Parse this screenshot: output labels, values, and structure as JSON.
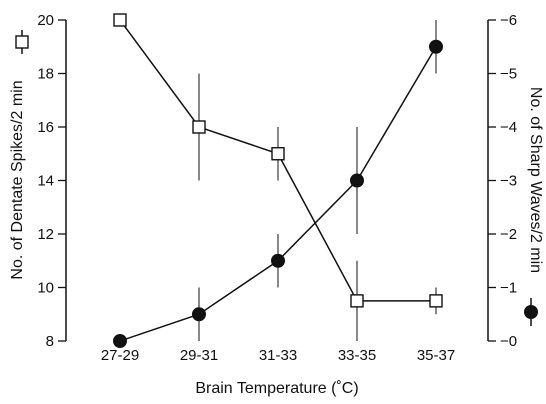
{
  "chart_data": {
    "type": "line",
    "categories": [
      "27-29",
      "29-31",
      "31-33",
      "33-35",
      "35-37"
    ],
    "xlabel": "Brain Temperature (˚C)",
    "left_axis": {
      "label": "No. of Dentate Spikes/2 min",
      "ylim": [
        8,
        20
      ],
      "ticks": [
        8,
        10,
        12,
        14,
        16,
        18,
        20
      ]
    },
    "right_axis": {
      "label": "No. of Sharp Waves/2 min",
      "ylim": [
        0,
        6
      ],
      "ticks": [
        0,
        1,
        2,
        3,
        4,
        5,
        6
      ]
    },
    "series": [
      {
        "axis": "left",
        "marker": "open-square",
        "values": [
          20,
          16,
          15,
          9.5,
          9.5
        ],
        "error": [
          0,
          2,
          1,
          1.5,
          0.5
        ]
      },
      {
        "axis": "right",
        "marker": "filled-circle",
        "values": [
          0,
          0.5,
          1.5,
          3,
          5.5
        ],
        "error": [
          0,
          0.5,
          0.5,
          1,
          0.5
        ]
      }
    ],
    "legend_markers": {
      "left": "open-square",
      "right": "filled-circle"
    },
    "grid": false
  }
}
